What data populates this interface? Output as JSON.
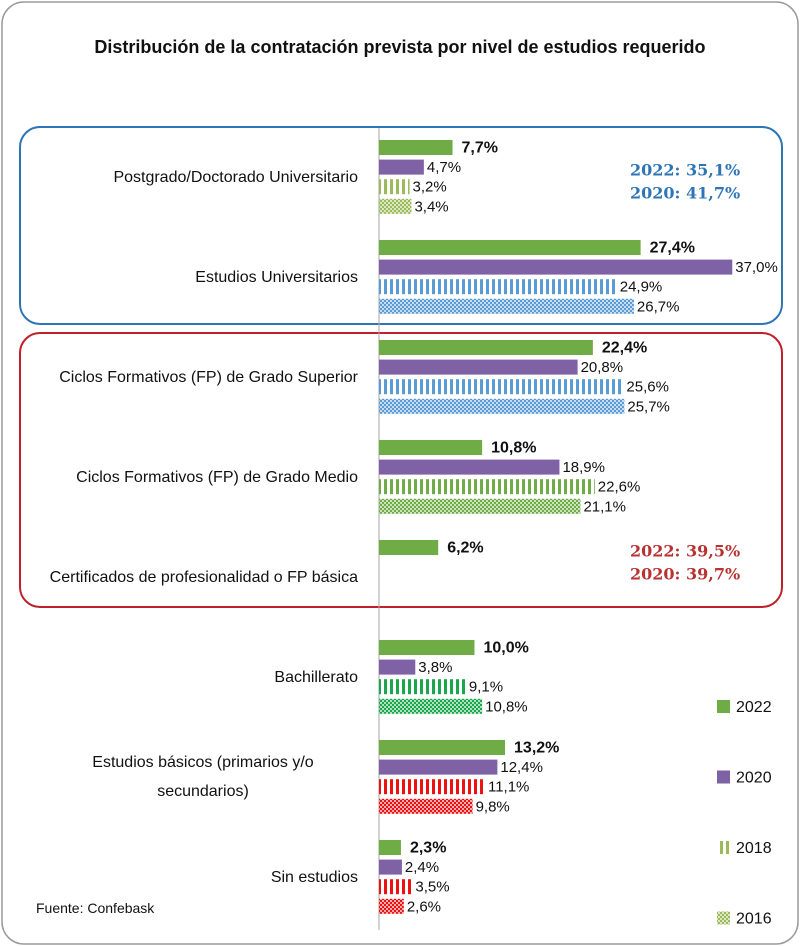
{
  "chart_data": {
    "type": "bar",
    "orientation": "horizontal",
    "title": "Distribución de la contratación prevista por nivel de estudios requerido",
    "source": "Fuente: Confebask",
    "categories": [
      "Postgrado/Doctorado Universitario",
      "Estudios Universitarios",
      "Ciclos Formativos (FP) de Grado Superior",
      "Ciclos Formativos (FP) de Grado Medio",
      "Certificados de profesionalidad o FP básica",
      "Bachillerato",
      "Estudios básicos (primarios y/o secundarios)",
      "Sin estudios"
    ],
    "xlim": [
      0,
      42
    ],
    "legend": "right",
    "series": [
      {
        "name": "2022",
        "color": "#6fac46",
        "pattern": "solid",
        "values": [
          7.7,
          27.4,
          22.4,
          10.8,
          6.2,
          10.0,
          13.2,
          2.3
        ],
        "value_labels": [
          "7,7%",
          "27,4%",
          "22,4%",
          "10,8%",
          "6,2%",
          "10,0%",
          "13,2%",
          "2,3%"
        ]
      },
      {
        "name": "2020",
        "color": "#7f62a6",
        "pattern": "solid",
        "values": [
          4.7,
          37.0,
          20.8,
          18.9,
          null,
          3.8,
          12.4,
          2.4
        ],
        "value_labels": [
          "4,7%",
          "37,0%",
          "20,8%",
          "18,9%",
          null,
          "3,8%",
          "12,4%",
          "2,4%"
        ]
      },
      {
        "name": "2018",
        "color": "#9bbb59",
        "pattern": "stripes",
        "point_colors": [
          "#9bbb59",
          "#5b9bd5",
          "#5b9bd5",
          "#6fac46",
          null,
          "#1aa64a",
          "#ee1111",
          "#ee1111"
        ],
        "values": [
          3.2,
          24.9,
          25.6,
          22.6,
          null,
          9.1,
          11.1,
          3.5
        ],
        "value_labels": [
          "3,2%",
          "24,9%",
          "25,6%",
          "22,6%",
          null,
          "9,1%",
          "11,1%",
          "3,5%"
        ]
      },
      {
        "name": "2016",
        "color": "#9bbb59",
        "pattern": "dots",
        "point_colors": [
          "#9bbb59",
          "#5b9bd5",
          "#5b9bd5",
          "#6fac46",
          null,
          "#1aa64a",
          "#ee1111",
          "#ee1111"
        ],
        "values": [
          3.4,
          26.7,
          25.7,
          21.1,
          null,
          10.8,
          9.8,
          2.6
        ],
        "value_labels": [
          "3,4%",
          "26,7%",
          "25,7%",
          "21,1%",
          null,
          "10,8%",
          "9,8%",
          "2,6%"
        ]
      }
    ],
    "annotations": [
      {
        "text": "2022: 35,1%",
        "color": "#2e75b6"
      },
      {
        "text": "2020: 41,7%",
        "color": "#2e75b6"
      },
      {
        "text": "2022: 39,5%",
        "color": "#b83232"
      },
      {
        "text": "2020: 39,7%",
        "color": "#b83232"
      }
    ]
  }
}
